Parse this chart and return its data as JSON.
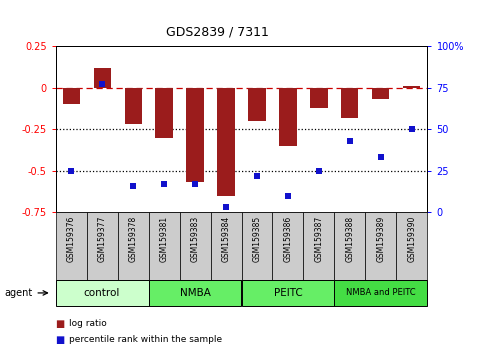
{
  "title": "GDS2839 / 7311",
  "samples": [
    "GSM159376",
    "GSM159377",
    "GSM159378",
    "GSM159381",
    "GSM159383",
    "GSM159384",
    "GSM159385",
    "GSM159386",
    "GSM159387",
    "GSM159388",
    "GSM159389",
    "GSM159390"
  ],
  "log_ratio": [
    -0.1,
    0.12,
    -0.22,
    -0.3,
    -0.57,
    -0.65,
    -0.2,
    -0.35,
    -0.12,
    -0.18,
    -0.07,
    0.01
  ],
  "percentile_rank": [
    25,
    77,
    16,
    17,
    17,
    3,
    22,
    10,
    25,
    43,
    33,
    50
  ],
  "bar_color": "#9B1C1C",
  "dot_color": "#1111CC",
  "dashed_line_color": "#CC0000",
  "dotted_line_color": "#000000",
  "ylim_left": [
    -0.75,
    0.25
  ],
  "ylim_right": [
    0,
    100
  ],
  "yticks_left": [
    -0.75,
    -0.5,
    -0.25,
    0,
    0.25
  ],
  "yticks_right": [
    0,
    25,
    50,
    75,
    100
  ],
  "groups": [
    {
      "label": "control",
      "start": 0,
      "end": 3,
      "color": "#CCFFCC"
    },
    {
      "label": "NMBA",
      "start": 3,
      "end": 6,
      "color": "#66EE66"
    },
    {
      "label": "PEITC",
      "start": 6,
      "end": 9,
      "color": "#66EE66"
    },
    {
      "label": "NMBA and PEITC",
      "start": 9,
      "end": 12,
      "color": "#44DD44"
    }
  ],
  "sample_box_color": "#CCCCCC",
  "legend_log_ratio": "log ratio",
  "legend_percentile": "percentile rank within the sample",
  "agent_label": "agent"
}
